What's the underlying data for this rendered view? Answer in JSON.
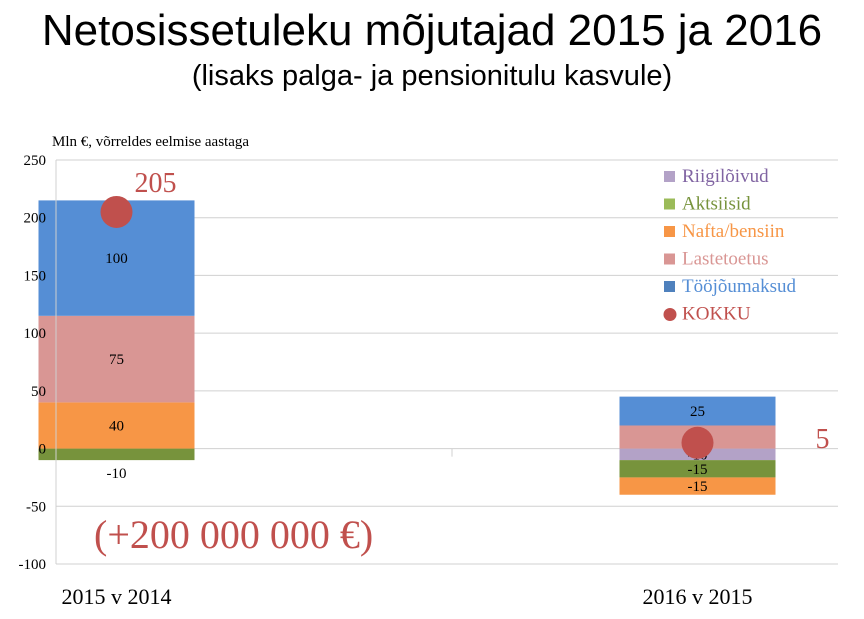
{
  "header": {
    "title": "Netosissetuleku mõjutajad 2015 ja 2016",
    "subtitle": "(lisaks palga- ja pensionitulu kasvule)"
  },
  "chart_data": {
    "type": "bar",
    "stacked": true,
    "unit_label": "Mln €, võrreldes eelmise aastaga",
    "categories": [
      "2015 v 2014",
      "2016 v 2015"
    ],
    "ylim": [
      -100,
      250
    ],
    "yticks": [
      250,
      200,
      150,
      100,
      50,
      0,
      -50,
      -100
    ],
    "grid": true,
    "legend_position": "top-right",
    "series": [
      {
        "name": "Riigilõivud",
        "color": "#8064a2",
        "legend_color": "#b3a2c7",
        "values": [
          0,
          -10
        ]
      },
      {
        "name": "Aktsiisid",
        "color": "#77933c",
        "legend_color": "#9bbb59",
        "values": [
          -10,
          -15
        ]
      },
      {
        "name": "Nafta/bensiin",
        "color": "#f79646",
        "legend_color": "#f79646",
        "values": [
          40,
          -15
        ]
      },
      {
        "name": "Lastetoetus",
        "color": "#d99694",
        "legend_color": "#d99694",
        "values": [
          75,
          20
        ]
      },
      {
        "name": "Tööjõumaksud",
        "color": "#558ed5",
        "legend_color": "#4f81bd",
        "values": [
          100,
          25
        ]
      }
    ],
    "segment_colors_in_bars": [
      "#b3a2c7",
      "#77933c",
      "#f79646",
      "#d99694",
      "#558ed5"
    ],
    "totals": {
      "name": "KOKKU",
      "color": "#c0504d",
      "values": [
        205,
        5
      ],
      "labels": [
        "205",
        "5"
      ]
    },
    "annotation": "(+200 000 000 €)"
  }
}
